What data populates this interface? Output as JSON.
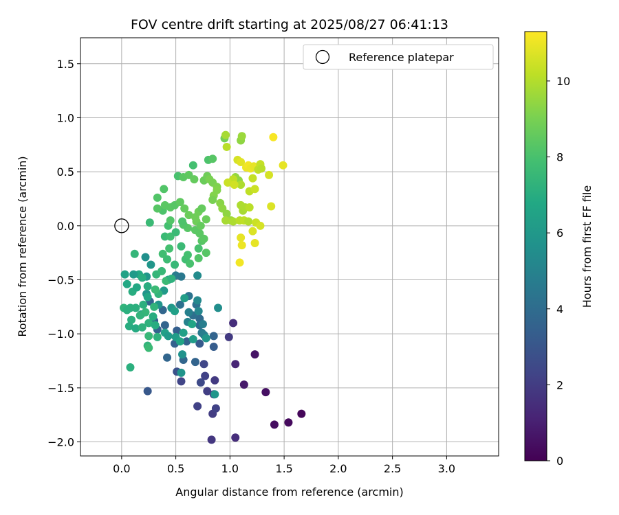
{
  "chart_data": {
    "type": "scatter",
    "title": "FOV centre drift starting at 2025/08/27 06:41:13",
    "xlabel": "Angular distance from reference (arcmin)",
    "ylabel": "Rotation from reference (arcmin)",
    "xlim": [
      -0.38,
      3.48
    ],
    "ylim": [
      -2.13,
      1.74
    ],
    "xticks": [
      "0.0",
      "0.5",
      "1.0",
      "1.5",
      "2.0",
      "2.5",
      "3.0"
    ],
    "xtick_values": [
      0,
      0.5,
      1.0,
      1.5,
      2.0,
      2.5,
      3.0
    ],
    "yticks": [
      "1.5",
      "1.0",
      "0.5",
      "0.0",
      "−0.5",
      "−1.0",
      "−1.5",
      "−2.0"
    ],
    "ytick_values": [
      1.5,
      1.0,
      0.5,
      0.0,
      -0.5,
      -1.0,
      -1.5,
      -2.0
    ],
    "grid": true,
    "legend": {
      "placement": "top-right",
      "entries": [
        "Reference platepar"
      ]
    },
    "reference_point": {
      "x": 0.0,
      "y": 0.0
    },
    "colorbar": {
      "label": "Hours from first FF file",
      "colormap": "viridis",
      "range": [
        0,
        11.3
      ],
      "ticks": [
        "0",
        "2",
        "4",
        "6",
        "8",
        "10"
      ],
      "tick_values": [
        0,
        2,
        4,
        6,
        8,
        10
      ]
    },
    "points": [
      [
        1.66,
        -1.74,
        0.2
      ],
      [
        1.54,
        -1.82,
        0.3
      ],
      [
        1.41,
        -1.84,
        0.4
      ],
      [
        1.33,
        -1.54,
        0.5
      ],
      [
        1.23,
        -1.19,
        0.6
      ],
      [
        1.13,
        -1.47,
        0.8
      ],
      [
        1.05,
        -1.28,
        1.2
      ],
      [
        1.05,
        -1.96,
        1.5
      ],
      [
        0.83,
        -1.98,
        1.8
      ],
      [
        1.03,
        -0.9,
        1.5
      ],
      [
        0.99,
        -1.03,
        1.9
      ],
      [
        0.86,
        -1.43,
        1.9
      ],
      [
        0.84,
        -1.74,
        2.0
      ],
      [
        0.87,
        -1.69,
        2.2
      ],
      [
        0.85,
        -1.56,
        2.0
      ],
      [
        0.79,
        -1.53,
        2.1
      ],
      [
        0.77,
        -1.39,
        2.2
      ],
      [
        0.7,
        -1.67,
        2.2
      ],
      [
        0.76,
        -1.28,
        2.4
      ],
      [
        0.73,
        -1.45,
        2.5
      ],
      [
        0.55,
        -1.44,
        2.3
      ],
      [
        0.51,
        -1.35,
        2.8
      ],
      [
        0.24,
        -1.53,
        3.1
      ],
      [
        0.85,
        -1.12,
        3.3
      ],
      [
        0.72,
        -1.09,
        3.2
      ],
      [
        0.68,
        -1.26,
        3.6
      ],
      [
        0.85,
        -1.02,
        3.6
      ],
      [
        0.6,
        -1.07,
        3.6
      ],
      [
        0.57,
        -1.24,
        3.7
      ],
      [
        0.42,
        -1.22,
        3.7
      ],
      [
        0.49,
        -1.09,
        3.5
      ],
      [
        0.51,
        -0.97,
        3.4
      ],
      [
        0.4,
        -0.92,
        3.6
      ],
      [
        0.33,
        -0.96,
        3.6
      ],
      [
        0.3,
        -0.88,
        3.4
      ],
      [
        0.26,
        -0.7,
        3.6
      ],
      [
        0.38,
        -0.78,
        3.7
      ],
      [
        0.54,
        -0.73,
        4.2
      ],
      [
        0.62,
        -0.65,
        4.3
      ],
      [
        0.69,
        -0.73,
        4.2
      ],
      [
        0.72,
        -0.86,
        3.9
      ],
      [
        0.66,
        -0.83,
        4.1
      ],
      [
        0.72,
        -0.92,
        4.0
      ],
      [
        0.74,
        -0.99,
        4.6
      ],
      [
        0.76,
        -1.01,
        4.8
      ],
      [
        0.61,
        -0.89,
        5.0
      ],
      [
        0.62,
        -0.8,
        4.9
      ],
      [
        0.71,
        -0.79,
        5.2
      ],
      [
        0.7,
        -0.69,
        5.3
      ],
      [
        0.7,
        -0.46,
        5.4
      ],
      [
        0.75,
        -0.91,
        4.8
      ],
      [
        0.89,
        -0.76,
        5.5
      ],
      [
        0.5,
        -0.46,
        4.7
      ],
      [
        0.55,
        -0.47,
        4.5
      ],
      [
        0.56,
        -1.19,
        5.7
      ],
      [
        0.55,
        -1.36,
        5.8
      ],
      [
        0.86,
        -1.56,
        5.9
      ],
      [
        0.78,
        -1.04,
        5.9
      ],
      [
        0.66,
        -1.05,
        6.2
      ],
      [
        0.58,
        -0.67,
        6.3
      ],
      [
        0.43,
        -0.5,
        6.3
      ],
      [
        0.39,
        -0.6,
        6.1
      ],
      [
        0.46,
        -0.76,
        6.0
      ],
      [
        0.49,
        -0.79,
        6.4
      ],
      [
        0.4,
        -0.99,
        6.4
      ],
      [
        0.43,
        -1.02,
        6.1
      ],
      [
        0.5,
        -1.03,
        6.2
      ],
      [
        0.54,
        -1.07,
        6.6
      ],
      [
        0.57,
        -0.99,
        6.4
      ],
      [
        0.65,
        -0.91,
        6.6
      ],
      [
        0.34,
        -0.73,
        5.8
      ],
      [
        0.18,
        -0.82,
        6.4
      ],
      [
        0.23,
        -0.63,
        5.8
      ],
      [
        0.22,
        -0.29,
        5.6
      ],
      [
        0.27,
        -0.36,
        5.9
      ],
      [
        0.23,
        -0.47,
        5.9
      ],
      [
        0.16,
        -0.45,
        6.8
      ],
      [
        0.11,
        -0.45,
        6.1
      ],
      [
        0.03,
        -0.45,
        6.5
      ],
      [
        0.05,
        -0.54,
        6.8
      ],
      [
        0.1,
        -0.61,
        7.0
      ],
      [
        0.14,
        -0.57,
        6.8
      ],
      [
        0.19,
        -0.48,
        7.0
      ],
      [
        0.24,
        -0.56,
        7.0
      ],
      [
        0.24,
        -0.66,
        6.7
      ],
      [
        0.2,
        -0.73,
        7.1
      ],
      [
        0.22,
        -0.8,
        7.4
      ],
      [
        0.17,
        -0.83,
        7.3
      ],
      [
        0.13,
        -0.76,
        7.1
      ],
      [
        0.08,
        -0.76,
        7.1
      ],
      [
        0.02,
        -0.76,
        7.3
      ],
      [
        0.05,
        -0.78,
        7.1
      ],
      [
        0.09,
        -0.87,
        7.1
      ],
      [
        0.07,
        -0.93,
        7.0
      ],
      [
        0.13,
        -0.95,
        6.9
      ],
      [
        0.19,
        -0.94,
        7.2
      ],
      [
        0.25,
        -0.9,
        7.2
      ],
      [
        0.29,
        -0.84,
        7.0
      ],
      [
        0.31,
        -0.92,
        7.0
      ],
      [
        0.33,
        -1.03,
        7.2
      ],
      [
        0.25,
        -1.02,
        7.5
      ],
      [
        0.24,
        -1.11,
        7.3
      ],
      [
        0.25,
        -1.13,
        7.6
      ],
      [
        0.08,
        -1.31,
        7.1
      ],
      [
        0.3,
        -0.75,
        7.3
      ],
      [
        0.34,
        -0.63,
        7.3
      ],
      [
        0.31,
        -0.59,
        7.6
      ],
      [
        0.32,
        -0.45,
        7.4
      ],
      [
        0.37,
        -0.42,
        7.5
      ],
      [
        0.41,
        -0.51,
        7.6
      ],
      [
        0.46,
        -0.49,
        7.2
      ],
      [
        0.49,
        -0.36,
        7.5
      ],
      [
        0.42,
        -0.31,
        7.7
      ],
      [
        0.38,
        -0.26,
        7.8
      ],
      [
        0.44,
        -0.21,
        7.9
      ],
      [
        0.4,
        -0.1,
        7.6
      ],
      [
        0.45,
        -0.1,
        7.8
      ],
      [
        0.5,
        -0.06,
        7.6
      ],
      [
        0.55,
        -0.19,
        7.6
      ],
      [
        0.59,
        -0.31,
        7.8
      ],
      [
        0.61,
        -0.27,
        7.9
      ],
      [
        0.63,
        -0.35,
        8.0
      ],
      [
        0.71,
        -0.3,
        8.2
      ],
      [
        0.78,
        -0.25,
        8.3
      ],
      [
        0.71,
        -0.21,
        8.0
      ],
      [
        0.74,
        -0.14,
        8.3
      ],
      [
        0.76,
        -0.12,
        8.4
      ],
      [
        0.72,
        -0.07,
        8.4
      ],
      [
        0.68,
        -0.04,
        8.4
      ],
      [
        0.61,
        -0.02,
        8.3
      ],
      [
        0.57,
        0.01,
        8.2
      ],
      [
        0.56,
        0.04,
        8.1
      ],
      [
        0.43,
        0.0,
        7.9
      ],
      [
        0.45,
        0.05,
        8.2
      ],
      [
        0.38,
        0.14,
        8.1
      ],
      [
        0.33,
        0.16,
        8.3
      ],
      [
        0.4,
        0.19,
        8.4
      ],
      [
        0.45,
        0.17,
        8.4
      ],
      [
        0.49,
        0.19,
        8.3
      ],
      [
        0.54,
        0.22,
        8.5
      ],
      [
        0.58,
        0.16,
        8.6
      ],
      [
        0.62,
        0.1,
        8.7
      ],
      [
        0.69,
        0.04,
        8.8
      ],
      [
        0.68,
        0.08,
        8.8
      ],
      [
        0.71,
        0.13,
        8.8
      ],
      [
        0.78,
        0.06,
        8.7
      ],
      [
        0.74,
        0.16,
        8.6
      ],
      [
        0.73,
        0.0,
        8.6
      ],
      [
        0.33,
        0.26,
        8.2
      ],
      [
        0.39,
        0.34,
        8.2
      ],
      [
        0.52,
        0.46,
        8.0
      ],
      [
        0.66,
        0.56,
        7.9
      ],
      [
        0.57,
        0.45,
        8.4
      ],
      [
        0.62,
        0.47,
        8.5
      ],
      [
        0.67,
        0.43,
        8.6
      ],
      [
        0.76,
        0.42,
        8.7
      ],
      [
        0.79,
        0.46,
        8.8
      ],
      [
        0.81,
        0.43,
        9.0
      ],
      [
        0.84,
        0.4,
        9.0
      ],
      [
        0.88,
        0.36,
        9.1
      ],
      [
        0.88,
        0.33,
        9.2
      ],
      [
        0.85,
        0.28,
        9.2
      ],
      [
        0.84,
        0.24,
        9.0
      ],
      [
        0.91,
        0.21,
        9.3
      ],
      [
        0.93,
        0.16,
        9.4
      ],
      [
        0.97,
        0.11,
        9.4
      ],
      [
        1.01,
        0.05,
        9.6
      ],
      [
        0.96,
        0.05,
        9.8
      ],
      [
        1.03,
        0.04,
        9.9
      ],
      [
        1.09,
        0.05,
        10.1
      ],
      [
        1.13,
        0.05,
        10.2
      ],
      [
        1.17,
        0.04,
        10.0
      ],
      [
        1.12,
        0.14,
        9.8
      ],
      [
        1.14,
        0.17,
        9.9
      ],
      [
        1.1,
        0.19,
        9.9
      ],
      [
        1.18,
        0.17,
        10.1
      ],
      [
        1.24,
        0.03,
        10.4
      ],
      [
        1.28,
        0.0,
        10.6
      ],
      [
        1.21,
        -0.05,
        10.7
      ],
      [
        1.23,
        -0.16,
        10.9
      ],
      [
        1.1,
        -0.11,
        10.9
      ],
      [
        1.11,
        -0.18,
        11.0
      ],
      [
        1.09,
        -0.34,
        11.1
      ],
      [
        0.8,
        0.61,
        8.1
      ],
      [
        0.84,
        0.62,
        8.3
      ],
      [
        0.95,
        0.81,
        8.9
      ],
      [
        0.96,
        0.84,
        9.8
      ],
      [
        0.97,
        0.73,
        10.1
      ],
      [
        1.1,
        0.79,
        9.4
      ],
      [
        1.11,
        0.83,
        9.6
      ],
      [
        1.05,
        0.45,
        9.5
      ],
      [
        1.08,
        0.42,
        9.4
      ],
      [
        1.1,
        0.38,
        9.9
      ],
      [
        1.03,
        0.43,
        10.2
      ],
      [
        0.98,
        0.4,
        10.4
      ],
      [
        1.04,
        0.38,
        10.5
      ],
      [
        1.07,
        0.61,
        10.6
      ],
      [
        1.1,
        0.59,
        10.8
      ],
      [
        1.15,
        0.54,
        11.0
      ],
      [
        1.17,
        0.56,
        11.1
      ],
      [
        1.19,
        0.53,
        11.0
      ],
      [
        1.22,
        0.55,
        10.9
      ],
      [
        1.21,
        0.44,
        10.3
      ],
      [
        1.18,
        0.32,
        10.2
      ],
      [
        1.23,
        0.34,
        10.4
      ],
      [
        1.26,
        0.52,
        10.2
      ],
      [
        1.28,
        0.57,
        10.3
      ],
      [
        1.29,
        0.53,
        10.1
      ],
      [
        1.36,
        0.47,
        10.6
      ],
      [
        1.38,
        0.18,
        10.7
      ],
      [
        1.4,
        0.82,
        11.2
      ],
      [
        1.49,
        0.56,
        10.9
      ],
      [
        0.26,
        0.03,
        7.6
      ],
      [
        0.12,
        -0.26,
        7.4
      ]
    ]
  }
}
